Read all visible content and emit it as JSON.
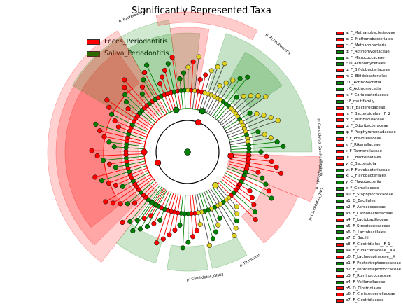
{
  "chart_data": {
    "type": "cladogram",
    "title": "Significantly Represented Taxa",
    "colors": {
      "Feces_Periodontitis": "#ff0000",
      "Saliva_Periodontitis": "#008000",
      "non_significant": "#e0d020"
    },
    "groups": [
      {
        "name": "Feces_Periodontitis",
        "color": "#ff0000"
      },
      {
        "name": "Saliva_Periodontitis",
        "color": "#008000"
      }
    ],
    "clade_labels": [
      "p: Bacteroidetes",
      "p: Actinobacteria",
      "p: Candidatus_Saccharibacteria",
      "p: Spirochaetes",
      "p: Firmicutes",
      "p: Candidatus_TM7",
      "p: Candidatus_GN02"
    ],
    "taxa": [
      {
        "key": "a",
        "name": "a: F_Methanobacteriaceae",
        "group": "Feces_Periodontitis"
      },
      {
        "key": "b",
        "name": "b: O_Methanobacteriales",
        "group": "Feces_Periodontitis"
      },
      {
        "key": "c",
        "name": "c: C_Methanobacteria",
        "group": "Feces_Periodontitis"
      },
      {
        "key": "d",
        "name": "d: F_Actinomycetaceae",
        "group": "Saliva_Periodontitis"
      },
      {
        "key": "e",
        "name": "e: F_Micrococcaceae",
        "group": "Saliva_Periodontitis"
      },
      {
        "key": "f",
        "name": "f: O_Actinomycetales",
        "group": "Saliva_Periodontitis"
      },
      {
        "key": "g",
        "name": "g: F_Bifidobacteriaceae",
        "group": "Feces_Periodontitis"
      },
      {
        "key": "h",
        "name": "h: O_Bifidobacteriales",
        "group": "Feces_Periodontitis"
      },
      {
        "key": "i",
        "name": "i: C_Actinobacteria",
        "group": "Saliva_Periodontitis"
      },
      {
        "key": "j",
        "name": "j: C_Actinomycetia",
        "group": "Saliva_Periodontitis"
      },
      {
        "key": "k",
        "name": "k: F_Coriobacteriaceae",
        "group": "Feces_Periodontitis"
      },
      {
        "key": "l",
        "name": "l: F_multifamily",
        "group": "Saliva_Periodontitis"
      },
      {
        "key": "m",
        "name": "m: F_Bacteroidaceae",
        "group": "Feces_Periodontitis"
      },
      {
        "key": "n",
        "name": "n: F_Bacteroidales__F_2_",
        "group": "Feces_Periodontitis"
      },
      {
        "key": "o",
        "name": "o: F_Muribaculaceae",
        "group": "Feces_Periodontitis"
      },
      {
        "key": "p",
        "name": "p: F_Odoribacteraceae",
        "group": "Feces_Periodontitis"
      },
      {
        "key": "q",
        "name": "q: F_Porphyromonadaceae",
        "group": "Saliva_Periodontitis"
      },
      {
        "key": "r",
        "name": "r: F_Prevotellaceae",
        "group": "Feces_Periodontitis"
      },
      {
        "key": "s",
        "name": "s: F_Rikenellaceae",
        "group": "Feces_Periodontitis"
      },
      {
        "key": "t",
        "name": "t: F_Tannerellaceae",
        "group": "Feces_Periodontitis"
      },
      {
        "key": "u",
        "name": "u: O_Bacteroidales",
        "group": "Feces_Periodontitis"
      },
      {
        "key": "v",
        "name": "v: C_Bacteroidia",
        "group": "Feces_Periodontitis"
      },
      {
        "key": "w",
        "name": "w: F_Flavobacteriaceae",
        "group": "Saliva_Periodontitis"
      },
      {
        "key": "x",
        "name": "x: O_Flavobacteriales",
        "group": "Saliva_Periodontitis"
      },
      {
        "key": "y",
        "name": "y: C_Flavobacteriia",
        "group": "Saliva_Periodontitis"
      },
      {
        "key": "z",
        "name": "z: F_Gemellaceae",
        "group": "Saliva_Periodontitis"
      },
      {
        "key": "a0",
        "name": "a0: F_Staphylococcaceae",
        "group": "Saliva_Periodontitis"
      },
      {
        "key": "a1",
        "name": "a1: O_Bacillales",
        "group": "Saliva_Periodontitis"
      },
      {
        "key": "a2",
        "name": "a2: F_Aerococcaceae",
        "group": "Saliva_Periodontitis"
      },
      {
        "key": "a3",
        "name": "a3: F_Carnobacteriaceae",
        "group": "Saliva_Periodontitis"
      },
      {
        "key": "a4",
        "name": "a4: F_Lactobacillaceae",
        "group": "Feces_Periodontitis"
      },
      {
        "key": "a5",
        "name": "a5: F_Streptococcaceae",
        "group": "Saliva_Periodontitis"
      },
      {
        "key": "a6",
        "name": "a6: O_Lactobacillales",
        "group": "Saliva_Periodontitis"
      },
      {
        "key": "a7",
        "name": "a7: C_Bacilli",
        "group": "Saliva_Periodontitis"
      },
      {
        "key": "a8",
        "name": "a8: F_Clostridiales__F_1_",
        "group": "Feces_Periodontitis"
      },
      {
        "key": "a9",
        "name": "a9: F_Eubacteriaceae__XV",
        "group": "Saliva_Periodontitis"
      },
      {
        "key": "b0",
        "name": "b0: F_Lachnospiraceae__X",
        "group": "Feces_Periodontitis"
      },
      {
        "key": "b1",
        "name": "b1: F_Peptostreptococcaceae",
        "group": "Saliva_Periodontitis"
      },
      {
        "key": "b2",
        "name": "b2: F_Peptostreptococcaceae",
        "group": "Saliva_Periodontitis"
      },
      {
        "key": "b3",
        "name": "b3: F_Ruminococcaceae",
        "group": "Feces_Periodontitis"
      },
      {
        "key": "b4",
        "name": "b4: F_Veillonellaceae",
        "group": "Saliva_Periodontitis"
      },
      {
        "key": "b5",
        "name": "b5: O_Clostridiales",
        "group": "Feces_Periodontitis"
      },
      {
        "key": "b6",
        "name": "b6: F_Christensenellaceae",
        "group": "Feces_Periodontitis"
      },
      {
        "key": "b7",
        "name": "b7: F_Clostridiaceae",
        "group": "Feces_Periodontitis"
      }
    ]
  }
}
